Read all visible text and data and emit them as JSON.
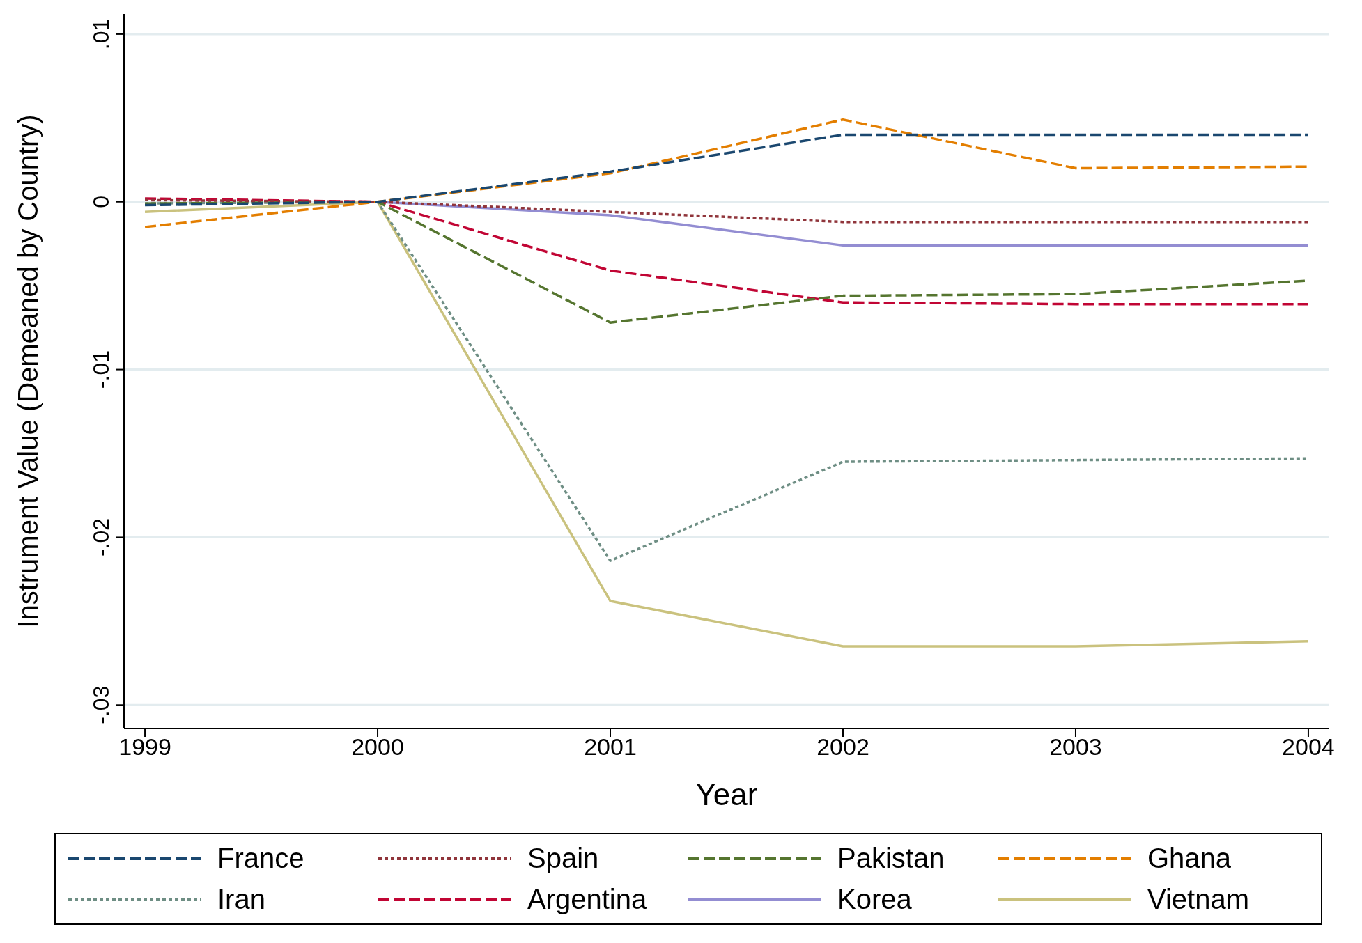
{
  "chart_data": {
    "type": "line",
    "xlabel": "Year",
    "ylabel": "Instrument Value (Demeaned by Country)",
    "x": [
      1999,
      2000,
      2001,
      2002,
      2003,
      2004
    ],
    "xlim": [
      1998.91,
      2004.09
    ],
    "xticks": [
      1999,
      2000,
      2001,
      2002,
      2003,
      2004
    ],
    "ylim": [
      -0.0314,
      0.0112
    ],
    "yticks": [
      {
        "value": -0.03,
        "label": "-.03"
      },
      {
        "value": -0.02,
        "label": "-.02"
      },
      {
        "value": -0.01,
        "label": "-.01"
      },
      {
        "value": 0,
        "label": "0"
      },
      {
        "value": 0.01,
        "label": ".01"
      }
    ],
    "grid": "y",
    "legend": "bottom",
    "marker": "none",
    "series": [
      {
        "name": "France",
        "color": "#1a476f",
        "line_style": "dashed",
        "values": [
          -0.0002,
          0,
          0.0018,
          0.004,
          0.004,
          0.004
        ]
      },
      {
        "name": "Spain",
        "color": "#90353b",
        "line_style": "dotted",
        "values": [
          0.0001,
          0,
          -0.0006,
          -0.0012,
          -0.0012,
          -0.0012
        ]
      },
      {
        "name": "Pakistan",
        "color": "#55752f",
        "line_style": "dashed",
        "values": [
          -0.0001,
          0,
          -0.0072,
          -0.0056,
          -0.0055,
          -0.0047
        ]
      },
      {
        "name": "Ghana",
        "color": "#e37e00",
        "line_style": "dashed",
        "values": [
          -0.0015,
          0,
          0.0017,
          0.0049,
          0.002,
          0.0021
        ]
      },
      {
        "name": "Iran",
        "color": "#6e8e84",
        "line_style": "dotted",
        "values": [
          -0.0001,
          0,
          -0.0214,
          -0.0155,
          -0.0154,
          -0.0153
        ]
      },
      {
        "name": "Argentina",
        "color": "#c10534",
        "line_style": "dashed",
        "values": [
          0.0002,
          0,
          -0.0041,
          -0.006,
          -0.0061,
          -0.0061
        ]
      },
      {
        "name": "Korea",
        "color": "#938dd2",
        "line_style": "solid",
        "values": [
          null,
          0,
          -0.0008,
          -0.0026,
          -0.0026,
          -0.0026
        ]
      },
      {
        "name": "Vietnam",
        "color": "#cac27e",
        "line_style": "solid",
        "values": [
          -0.0006,
          0,
          -0.0238,
          -0.0265,
          -0.0265,
          -0.0262
        ]
      }
    ]
  }
}
